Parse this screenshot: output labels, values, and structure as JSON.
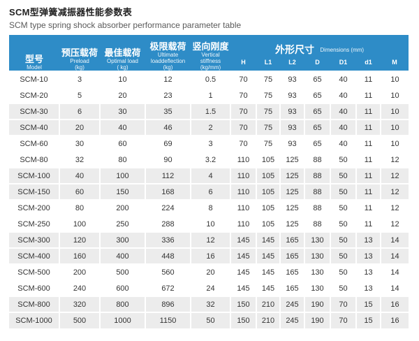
{
  "page": {
    "title_zh": "SCM型弹簧减振器性能参数表",
    "title_en": "SCM type spring shock absorber performance parameter table"
  },
  "colors": {
    "header_bg": "#2e8cc7",
    "header_text": "#ffffff",
    "row_alt_bg": "#ececec",
    "body_text": "#333333"
  },
  "table": {
    "header": {
      "model": {
        "zh": "型号",
        "en": "Model"
      },
      "preload": {
        "zh": "预压载荷",
        "en": "Preload",
        "unit": "(kg)"
      },
      "optimal": {
        "zh": "最佳载荷",
        "en": "Optimal load",
        "unit": "( kg)"
      },
      "ultimate": {
        "zh": "极限载荷",
        "en": "Ultimate loaddeflection",
        "unit": "(kg)"
      },
      "stiffness": {
        "zh": "竖向刚度",
        "en": "Vertical stiffness",
        "unit": "(kg/mm)"
      },
      "dimensions": {
        "zh": "外形尺寸",
        "en": "Dimensions (mm)",
        "sub": [
          "H",
          "L1",
          "L2",
          "D",
          "D1",
          "d1",
          "M"
        ]
      }
    },
    "rows": [
      [
        "SCM-10",
        "3",
        "10",
        "12",
        "0.5",
        "70",
        "75",
        "93",
        "65",
        "40",
        "11",
        "10"
      ],
      [
        "SCM-20",
        "5",
        "20",
        "23",
        "1",
        "70",
        "75",
        "93",
        "65",
        "40",
        "11",
        "10"
      ],
      [
        "SCM-30",
        "6",
        "30",
        "35",
        "1.5",
        "70",
        "75",
        "93",
        "65",
        "40",
        "11",
        "10"
      ],
      [
        "SCM-40",
        "20",
        "40",
        "46",
        "2",
        "70",
        "75",
        "93",
        "65",
        "40",
        "11",
        "10"
      ],
      [
        "SCM-60",
        "30",
        "60",
        "69",
        "3",
        "70",
        "75",
        "93",
        "65",
        "40",
        "11",
        "10"
      ],
      [
        "SCM-80",
        "32",
        "80",
        "90",
        "3.2",
        "110",
        "105",
        "125",
        "88",
        "50",
        "11",
        "12"
      ],
      [
        "SCM-100",
        "40",
        "100",
        "112",
        "4",
        "110",
        "105",
        "125",
        "88",
        "50",
        "11",
        "12"
      ],
      [
        "SCM-150",
        "60",
        "150",
        "168",
        "6",
        "110",
        "105",
        "125",
        "88",
        "50",
        "11",
        "12"
      ],
      [
        "SCM-200",
        "80",
        "200",
        "224",
        "8",
        "110",
        "105",
        "125",
        "88",
        "50",
        "11",
        "12"
      ],
      [
        "SCM-250",
        "100",
        "250",
        "288",
        "10",
        "110",
        "105",
        "125",
        "88",
        "50",
        "11",
        "12"
      ],
      [
        "SCM-300",
        "120",
        "300",
        "336",
        "12",
        "145",
        "145",
        "165",
        "130",
        "50",
        "13",
        "14"
      ],
      [
        "SCM-400",
        "160",
        "400",
        "448",
        "16",
        "145",
        "145",
        "165",
        "130",
        "50",
        "13",
        "14"
      ],
      [
        "SCM-500",
        "200",
        "500",
        "560",
        "20",
        "145",
        "145",
        "165",
        "130",
        "50",
        "13",
        "14"
      ],
      [
        "SCM-600",
        "240",
        "600",
        "672",
        "24",
        "145",
        "145",
        "165",
        "130",
        "50",
        "13",
        "14"
      ],
      [
        "SCM-800",
        "320",
        "800",
        "896",
        "32",
        "150",
        "210",
        "245",
        "190",
        "70",
        "15",
        "16"
      ],
      [
        "SCM-1000",
        "500",
        "1000",
        "1150",
        "50",
        "150",
        "210",
        "245",
        "190",
        "70",
        "15",
        "16"
      ]
    ]
  }
}
